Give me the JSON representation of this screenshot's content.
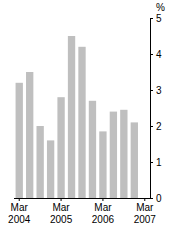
{
  "chart_data": {
    "type": "bar",
    "ylabel": "%",
    "categories": [
      "Mar 2004",
      null,
      null,
      null,
      "Mar 2005",
      null,
      null,
      null,
      "Mar 2006",
      null,
      null,
      null,
      "Mar 2007"
    ],
    "values": [
      3.2,
      3.5,
      2.0,
      1.6,
      2.8,
      4.5,
      4.2,
      2.7,
      1.85,
      2.4,
      2.45,
      2.1,
      null
    ],
    "color": "#bfbfbf",
    "ylim": [
      0,
      5
    ],
    "yticks": [
      0,
      1,
      2,
      3,
      4,
      5
    ],
    "grid": false
  }
}
